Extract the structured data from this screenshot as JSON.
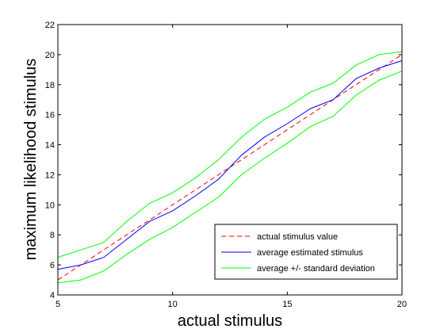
{
  "chart_data": {
    "type": "line",
    "title": "",
    "xlabel": "actual stimulus",
    "ylabel": "maximum likelihood stimulus",
    "xlim": [
      5,
      20
    ],
    "ylim": [
      4,
      22
    ],
    "xticks": [
      5,
      10,
      15,
      20
    ],
    "yticks": [
      4,
      6,
      8,
      10,
      12,
      14,
      16,
      18,
      20,
      22
    ],
    "grid": false,
    "legend_position": "bottom-right",
    "x": [
      5,
      6,
      7,
      8,
      9,
      10,
      11,
      12,
      13,
      14,
      15,
      16,
      17,
      18,
      19,
      20
    ],
    "series": [
      {
        "name": "actual stimulus value",
        "color": "#ff0000",
        "style": "dashed",
        "values": [
          5,
          6,
          7,
          8,
          9,
          10,
          11,
          12,
          13,
          14,
          15,
          16,
          17,
          18,
          19,
          20
        ]
      },
      {
        "name": "average estimated stimulus",
        "color": "#0000ff",
        "style": "solid",
        "values": [
          5.7,
          6.0,
          6.5,
          7.7,
          8.9,
          9.6,
          10.6,
          11.7,
          13.3,
          14.5,
          15.4,
          16.4,
          17.0,
          18.4,
          19.1,
          19.6
        ]
      },
      {
        "name": "average +/- standard deviation",
        "color": "#00ff00",
        "style": "solid",
        "values": [
          6.5,
          7.0,
          7.5,
          8.9,
          10.1,
          10.8,
          11.8,
          13.0,
          14.5,
          15.7,
          16.5,
          17.5,
          18.1,
          19.3,
          20.0,
          20.2
        ]
      },
      {
        "name": "",
        "color": "#00ff00",
        "style": "solid",
        "values": [
          4.8,
          5.0,
          5.6,
          6.7,
          7.7,
          8.5,
          9.5,
          10.5,
          12.0,
          13.1,
          14.1,
          15.2,
          15.9,
          17.3,
          18.3,
          18.9
        ]
      }
    ]
  }
}
